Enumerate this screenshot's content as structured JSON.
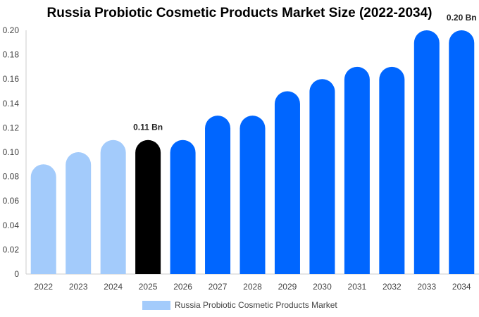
{
  "chart_data": {
    "type": "bar",
    "title": "Russia Probiotic Cosmetic Products Market Size (2022-2034)",
    "categories": [
      "2022",
      "2023",
      "2024",
      "2025",
      "2026",
      "2027",
      "2028",
      "2029",
      "2030",
      "2031",
      "2032",
      "2033",
      "2034"
    ],
    "series": [
      {
        "name": "Russia Probiotic Cosmetic Products Market",
        "values": [
          0.09,
          0.1,
          0.11,
          0.11,
          0.11,
          0.13,
          0.13,
          0.15,
          0.16,
          0.17,
          0.17,
          0.2,
          0.2
        ]
      }
    ],
    "bar_colors": [
      "#a3cbfb",
      "#a3cbfb",
      "#a3cbfb",
      "#000000",
      "#0066ff",
      "#0066ff",
      "#0066ff",
      "#0066ff",
      "#0066ff",
      "#0066ff",
      "#0066ff",
      "#0066ff",
      "#0066ff"
    ],
    "y_ticks": [
      "0",
      "0.02",
      "0.04",
      "0.06",
      "0.08",
      "0.10",
      "0.12",
      "0.14",
      "0.16",
      "0.18",
      "0.20"
    ],
    "ylim": [
      0,
      0.2
    ],
    "data_labels": [
      {
        "category": "2025",
        "text": "0.11 Bn"
      },
      {
        "category": "2034",
        "text": "0.20 Bn"
      }
    ],
    "legend": {
      "label": "Russia Probiotic Cosmetic Products Market",
      "color": "#a3cbfb",
      "position": "bottom-center"
    },
    "grid": false
  }
}
